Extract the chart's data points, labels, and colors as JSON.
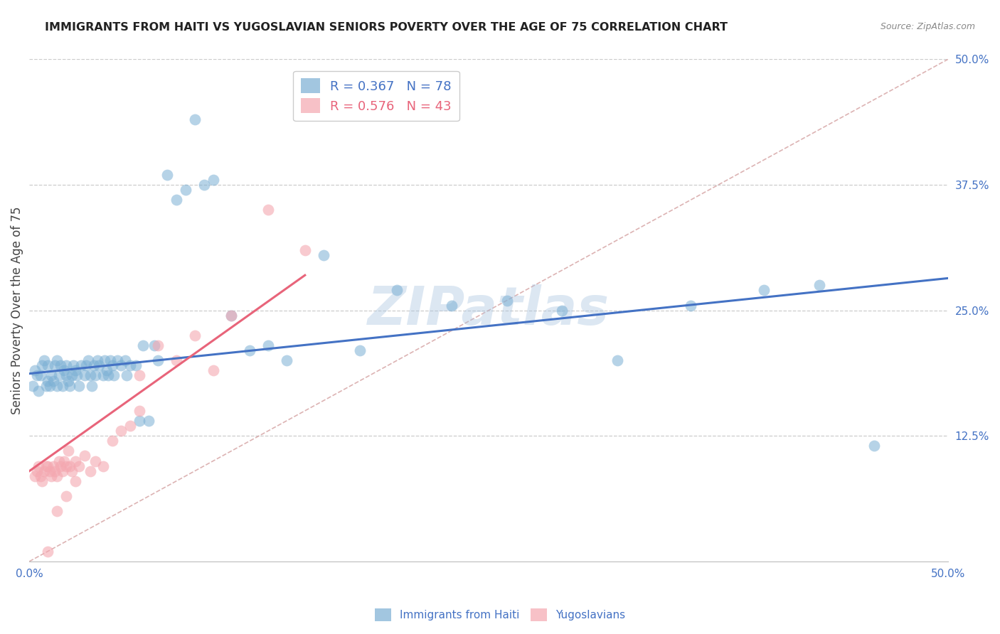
{
  "title": "IMMIGRANTS FROM HAITI VS YUGOSLAVIAN SENIORS POVERTY OVER THE AGE OF 75 CORRELATION CHART",
  "source": "Source: ZipAtlas.com",
  "ylabel": "Seniors Poverty Over the Age of 75",
  "x_min": 0.0,
  "x_max": 0.5,
  "y_min": 0.0,
  "y_max": 0.5,
  "haiti_color": "#7BAFD4",
  "yugo_color": "#F4A7B0",
  "haiti_line_color": "#4472C4",
  "yugo_line_color": "#E8647A",
  "diagonal_color": "#D4A0A0",
  "watermark_color": "#A8C4E0",
  "legend_haiti_R": "0.367",
  "legend_haiti_N": "78",
  "legend_yugo_R": "0.576",
  "legend_yugo_N": "43",
  "haiti_scatter_x": [
    0.002,
    0.003,
    0.004,
    0.005,
    0.006,
    0.007,
    0.008,
    0.009,
    0.01,
    0.01,
    0.011,
    0.012,
    0.013,
    0.014,
    0.015,
    0.015,
    0.016,
    0.017,
    0.018,
    0.019,
    0.02,
    0.02,
    0.021,
    0.022,
    0.023,
    0.024,
    0.025,
    0.026,
    0.027,
    0.028,
    0.03,
    0.031,
    0.032,
    0.033,
    0.034,
    0.035,
    0.036,
    0.037,
    0.038,
    0.04,
    0.041,
    0.042,
    0.043,
    0.044,
    0.045,
    0.046,
    0.048,
    0.05,
    0.052,
    0.053,
    0.055,
    0.058,
    0.06,
    0.062,
    0.065,
    0.068,
    0.07,
    0.075,
    0.08,
    0.085,
    0.09,
    0.095,
    0.1,
    0.11,
    0.12,
    0.13,
    0.14,
    0.16,
    0.18,
    0.2,
    0.23,
    0.26,
    0.29,
    0.32,
    0.36,
    0.4,
    0.43,
    0.46
  ],
  "haiti_scatter_y": [
    0.175,
    0.19,
    0.185,
    0.17,
    0.185,
    0.195,
    0.2,
    0.175,
    0.18,
    0.195,
    0.175,
    0.185,
    0.18,
    0.195,
    0.175,
    0.2,
    0.185,
    0.195,
    0.175,
    0.19,
    0.185,
    0.195,
    0.18,
    0.175,
    0.185,
    0.195,
    0.19,
    0.185,
    0.175,
    0.195,
    0.185,
    0.195,
    0.2,
    0.185,
    0.175,
    0.195,
    0.185,
    0.2,
    0.195,
    0.185,
    0.2,
    0.19,
    0.185,
    0.2,
    0.195,
    0.185,
    0.2,
    0.195,
    0.2,
    0.185,
    0.195,
    0.195,
    0.14,
    0.215,
    0.14,
    0.215,
    0.2,
    0.385,
    0.36,
    0.37,
    0.44,
    0.375,
    0.38,
    0.245,
    0.21,
    0.215,
    0.2,
    0.305,
    0.21,
    0.27,
    0.255,
    0.26,
    0.25,
    0.2,
    0.255,
    0.27,
    0.275,
    0.115
  ],
  "yugo_scatter_x": [
    0.003,
    0.004,
    0.005,
    0.006,
    0.007,
    0.008,
    0.009,
    0.01,
    0.011,
    0.012,
    0.013,
    0.014,
    0.015,
    0.016,
    0.017,
    0.018,
    0.019,
    0.02,
    0.021,
    0.022,
    0.023,
    0.025,
    0.027,
    0.03,
    0.033,
    0.036,
    0.04,
    0.045,
    0.05,
    0.055,
    0.06,
    0.07,
    0.08,
    0.09,
    0.1,
    0.11,
    0.13,
    0.15,
    0.01,
    0.015,
    0.02,
    0.025,
    0.06
  ],
  "yugo_scatter_y": [
    0.085,
    0.09,
    0.095,
    0.085,
    0.08,
    0.09,
    0.095,
    0.095,
    0.09,
    0.085,
    0.095,
    0.09,
    0.085,
    0.1,
    0.095,
    0.09,
    0.1,
    0.095,
    0.11,
    0.095,
    0.09,
    0.1,
    0.095,
    0.105,
    0.09,
    0.1,
    0.095,
    0.12,
    0.13,
    0.135,
    0.185,
    0.215,
    0.2,
    0.225,
    0.19,
    0.245,
    0.35,
    0.31,
    0.01,
    0.05,
    0.065,
    0.08,
    0.15
  ],
  "haiti_trend_x": [
    0.0,
    0.5
  ],
  "haiti_trend_y": [
    0.187,
    0.282
  ],
  "yugo_trend_x": [
    0.0,
    0.15
  ],
  "yugo_trend_y": [
    0.09,
    0.285
  ],
  "background_color": "#FFFFFF",
  "grid_color": "#CCCCCC",
  "tick_color": "#4472C4",
  "title_color": "#222222",
  "ylabel_color": "#444444"
}
